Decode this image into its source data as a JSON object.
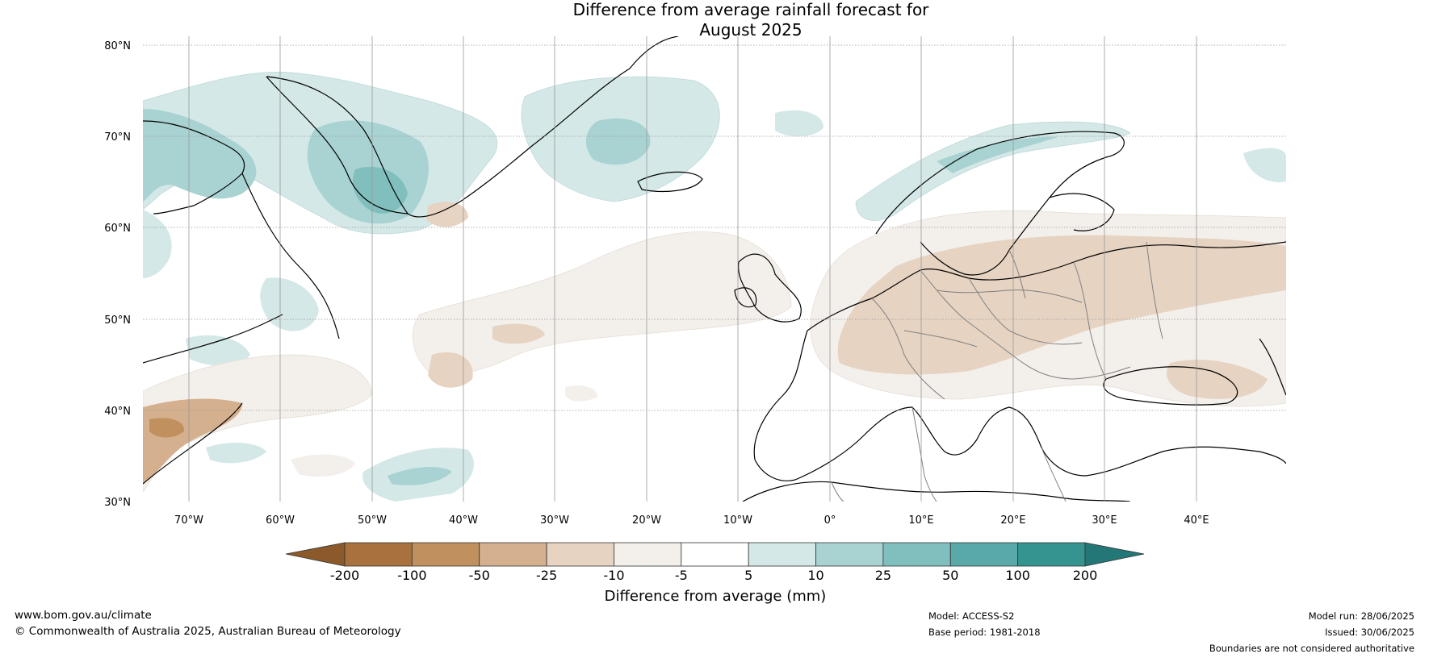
{
  "title_line1": "Difference from average rainfall forecast for",
  "title_line2": "August 2025",
  "map": {
    "lat_ticks": [
      "80°N",
      "70°N",
      "60°N",
      "50°N",
      "40°N",
      "30°N"
    ],
    "lon_ticks": [
      "70°W",
      "60°W",
      "50°W",
      "40°W",
      "30°W",
      "20°W",
      "10°W",
      "0°",
      "10°E",
      "20°E",
      "30°E",
      "40°E"
    ],
    "gridlines": true
  },
  "colorbar": {
    "title": "Difference from average (mm)",
    "labels": [
      "-200",
      "-100",
      "-50",
      "-25",
      "-10",
      "-5",
      "5",
      "10",
      "25",
      "50",
      "100",
      "200"
    ],
    "colors": [
      "#8c5a2a",
      "#a8713d",
      "#c0915f",
      "#d4b08e",
      "#e6d3c2",
      "#f3efea",
      "#ffffff",
      "#d4e8e7",
      "#a8d3d2",
      "#80bfbd",
      "#58a9a8",
      "#35948f",
      "#237776"
    ],
    "extend": "both"
  },
  "footer": {
    "website": "www.bom.gov.au/climate",
    "copyright": "© Commonwealth of Australia 2025, Australian Bureau of Meteorology",
    "model": "Model: ACCESS-S2",
    "base_period": "Base period: 1981-2018",
    "model_run": "Model run: 28/06/2025",
    "issued": "Issued: 30/06/2025",
    "disclaimer": "Boundaries are not considered authoritative"
  }
}
